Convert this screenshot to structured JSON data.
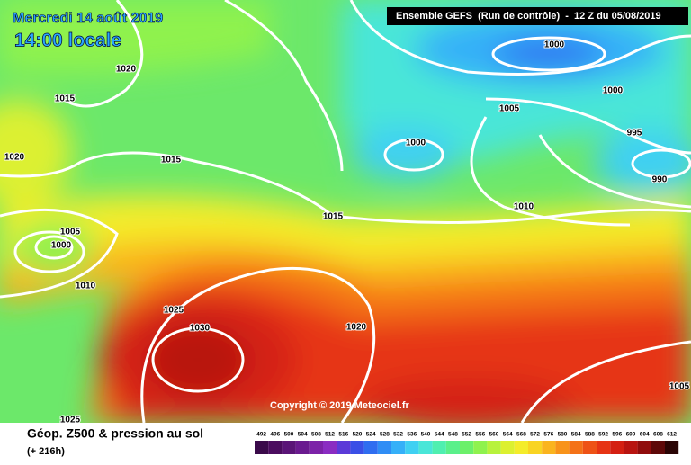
{
  "header": {
    "date": "Mercredi 14 août 2019",
    "time": "14:00 locale",
    "run": "Ensemble GEFS  (Run de contrôle)  -  12 Z du 05/08/2019"
  },
  "isobar_labels": [
    1020,
    1015,
    1020,
    1015,
    1005,
    1000,
    1010,
    1025,
    1030,
    1020,
    1025,
    1015,
    1000,
    1005,
    1000,
    1000,
    995,
    990,
    1010,
    1005
  ],
  "copyright": "Copyright © 2019 Meteociel.fr",
  "footer": {
    "title": "Géop. Z500 & pression au sol",
    "subtitle": "(+ 216h)"
  },
  "scale": {
    "labels": [
      492,
      496,
      500,
      504,
      508,
      512,
      516,
      520,
      524,
      528,
      532,
      536,
      540,
      544,
      548,
      552,
      556,
      560,
      564,
      568,
      572,
      576,
      580,
      584,
      588,
      592,
      596,
      600,
      604,
      608,
      612
    ],
    "colors": [
      "#3a0a4a",
      "#4b0c5f",
      "#5a1477",
      "#6a1a8f",
      "#7c22a8",
      "#8a2cc2",
      "#5b3ad8",
      "#3a4fe6",
      "#2f6df0",
      "#2f8df5",
      "#35b0f8",
      "#3fd0f2",
      "#49e6d8",
      "#4fefb0",
      "#5af08a",
      "#6cf06a",
      "#8ff24e",
      "#b8f23c",
      "#dcf030",
      "#f4ec2a",
      "#f9d422",
      "#fab41e",
      "#f8931a",
      "#f47218",
      "#ee5216",
      "#e63414",
      "#d42012",
      "#b81410",
      "#900c0c",
      "#5e0808",
      "#2a0404"
    ]
  }
}
